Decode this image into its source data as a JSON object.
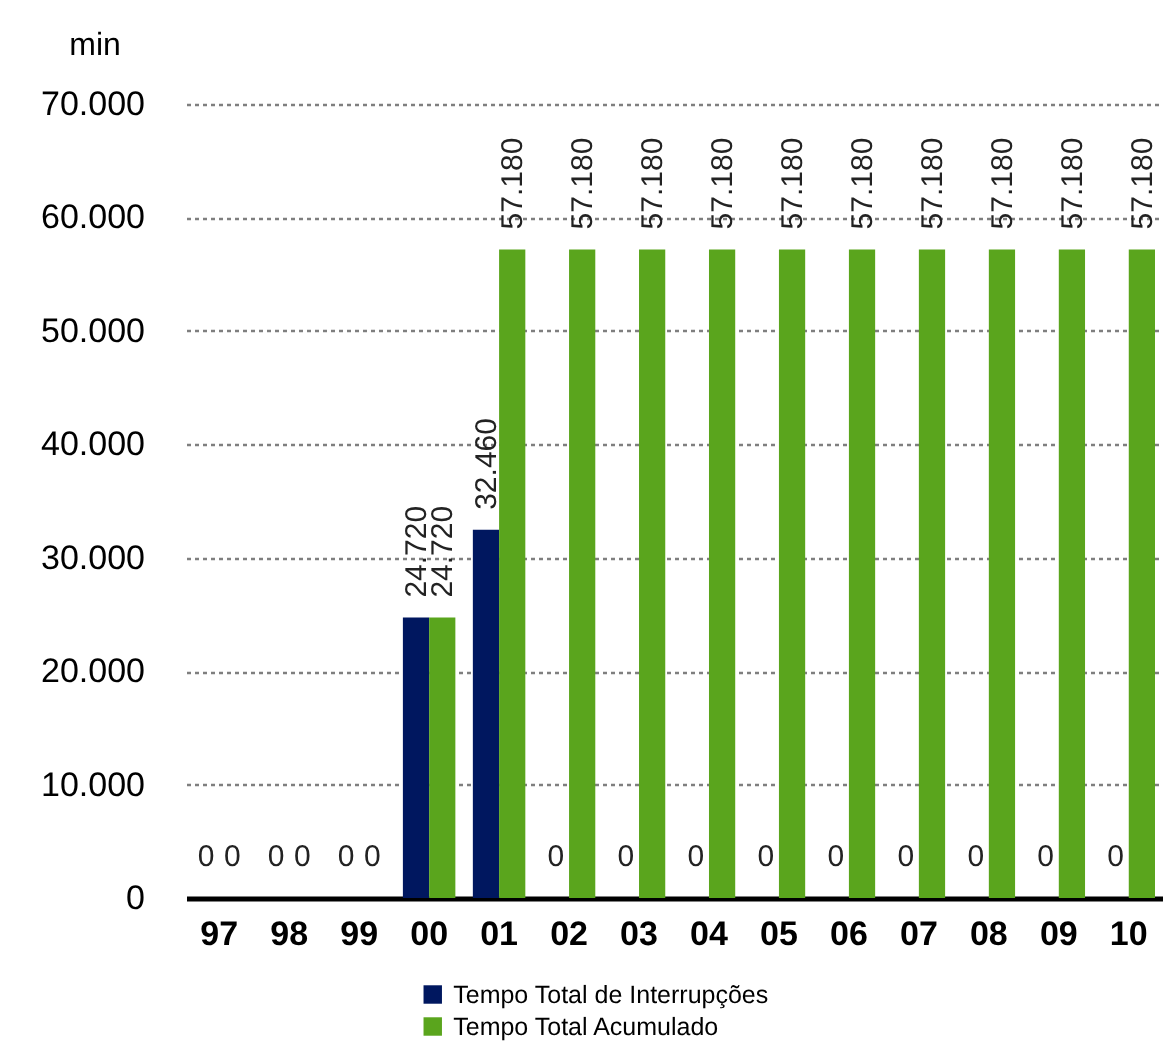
{
  "chart_data": {
    "type": "bar",
    "ylabel": "min",
    "categories": [
      "97",
      "98",
      "99",
      "00",
      "01",
      "02",
      "03",
      "04",
      "05",
      "06",
      "07",
      "08",
      "09",
      "10"
    ],
    "series": [
      {
        "name": "Tempo Total de Interrupções",
        "color": "#00175f",
        "values": [
          0,
          0,
          0,
          24720,
          32460,
          0,
          0,
          0,
          0,
          0,
          0,
          0,
          0,
          0
        ],
        "value_labels": [
          "0",
          "0",
          "0",
          "24.720",
          "32.460",
          "0",
          "0",
          "0",
          "0",
          "0",
          "0",
          "0",
          "0",
          "0"
        ]
      },
      {
        "name": "Tempo Total Acumulado",
        "color": "#5aa51d",
        "values": [
          0,
          0,
          0,
          24720,
          57180,
          57180,
          57180,
          57180,
          57180,
          57180,
          57180,
          57180,
          57180,
          57180
        ],
        "value_labels": [
          "0",
          "0",
          "0",
          "24.720",
          "57.180",
          "57.180",
          "57.180",
          "57.180",
          "57.180",
          "57.180",
          "57.180",
          "57.180",
          "57.180",
          "57.180"
        ]
      }
    ],
    "ylim": [
      0,
      70000
    ],
    "yticks": [
      0,
      {
        "value": 10000,
        "label": "10.000"
      },
      {
        "value": 20000,
        "label": "20.000"
      },
      {
        "value": 30000,
        "label": "30.000"
      },
      {
        "value": 40000,
        "label": "40.000"
      },
      {
        "value": 50000,
        "label": "50.000"
      },
      {
        "value": 60000,
        "label": "60.000"
      },
      {
        "value": 70000,
        "label": "70.000"
      }
    ],
    "grid": "y",
    "legend": "bottom"
  }
}
